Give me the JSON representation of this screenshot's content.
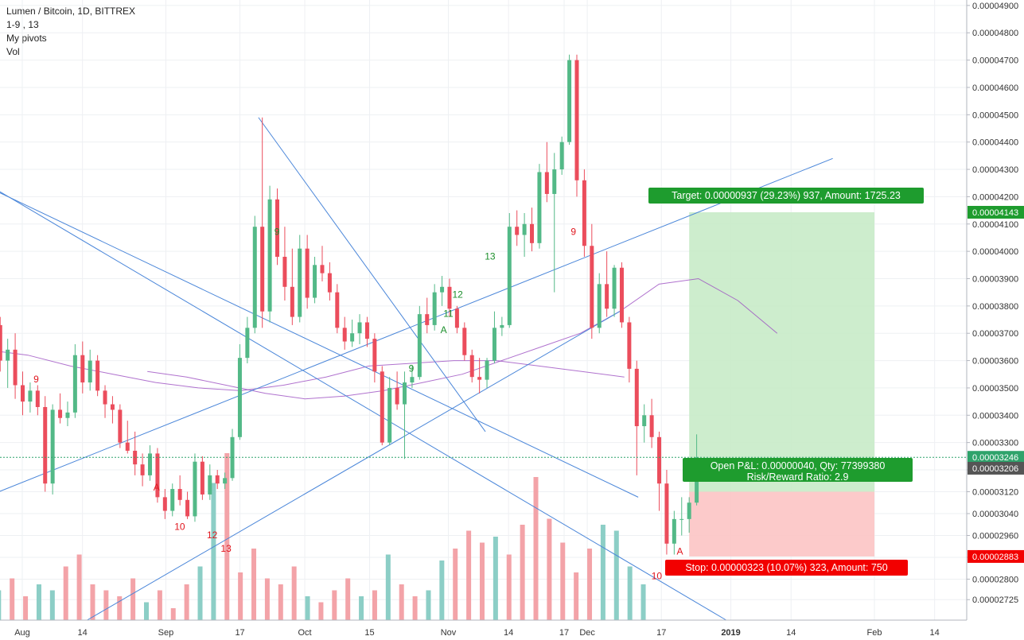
{
  "legend": {
    "title": "Lumen / Bitcoin, 1D, BITTREX",
    "line2": "1-9 , 13",
    "line3": "My pivots",
    "line4": "Vol"
  },
  "colors": {
    "up": "#53b987",
    "down": "#eb4d5c",
    "vol_up": "#8ccec6",
    "vol_down": "#f3a3a8",
    "trend": "#4a86d9",
    "ma_slow": "#9c4fc2",
    "target_zone": "#c8ebc8",
    "stop_zone": "#fcc4c4",
    "target_label": "#1e9c2e",
    "stop_label": "#f20000",
    "last_price": "#2fa36b",
    "marker_green": "#1c8f2c",
    "marker_red": "#e0151d",
    "marker_orange": "#e8a33a"
  },
  "chart_data": {
    "type": "candlestick",
    "symbol": "Lumen / Bitcoin, 1D, BITTREX",
    "ylim": [
      2.65e-05,
      4.92e-05
    ],
    "y_ticks": [
      "0.00004900",
      "0.00004800",
      "0.00004700",
      "0.00004600",
      "0.00004500",
      "0.00004400",
      "0.00004300",
      "0.00004200",
      "0.00004100",
      "0.00004000",
      "0.00003900",
      "0.00003800",
      "0.00003700",
      "0.00003600",
      "0.00003500",
      "0.00003400",
      "0.00003300",
      "0.00003200",
      "0.00003120",
      "0.00003040",
      "0.00002960",
      "0.00002880",
      "0.00002800",
      "0.00002725"
    ],
    "x_ticks": [
      {
        "label": "Aug",
        "date": "2018-08-01"
      },
      {
        "label": "14",
        "date": "2018-08-14"
      },
      {
        "label": "Sep",
        "date": "2018-09-01"
      },
      {
        "label": "17",
        "date": "2018-09-17"
      },
      {
        "label": "Oct",
        "date": "2018-10-01"
      },
      {
        "label": "15",
        "date": "2018-10-15"
      },
      {
        "label": "Nov",
        "date": "2018-11-01"
      },
      {
        "label": "14",
        "date": "2018-11-14"
      },
      {
        "label": "17",
        "date": "2018-11-26"
      },
      {
        "label": "Dec",
        "date": "2018-12-01"
      },
      {
        "label": "17",
        "date": "2018-12-17"
      },
      {
        "label": "2019",
        "date": "2019-01-01"
      },
      {
        "label": "14",
        "date": "2019-01-14"
      },
      {
        "label": "Feb",
        "date": "2019-02-01"
      },
      {
        "label": "14",
        "date": "2019-02-14"
      }
    ],
    "first_candle_date": "2018-07-24",
    "candles": [
      [
        3.88e-05,
        3.92e-05,
        3.74e-05,
        3.78e-05,
        3.84e-05,
        3.88e-05,
        3.7e-05,
        3.73e-05
      ],
      [
        3.73e-05,
        3.76e-05,
        3.56e-05,
        3.6e-05,
        3.6e-05,
        3.68e-05,
        3.5e-05,
        3.64e-05
      ],
      [
        3.64e-05,
        3.7e-05,
        3.46e-05,
        3.51e-05,
        3.51e-05,
        3.56e-05,
        3.4e-05,
        3.45e-05
      ],
      [
        3.45e-05,
        3.52e-05,
        3.41e-05,
        3.49e-05,
        3.49e-05,
        3.51e-05,
        3.4e-05,
        3.43e-05
      ],
      [
        3.43e-05,
        3.47e-05,
        3.12e-05,
        3.15e-05,
        3.15e-05,
        3.44e-05,
        3.11e-05,
        3.42e-05
      ],
      [
        3.42e-05,
        3.48e-05,
        3.37e-05,
        3.39e-05,
        3.39e-05,
        3.45e-05,
        3.36e-05,
        3.41e-05
      ],
      [
        3.41e-05,
        3.66e-05,
        3.39e-05,
        3.62e-05,
        3.62e-05,
        3.67e-05,
        3.48e-05,
        3.52e-05
      ],
      [
        3.52e-05,
        3.64e-05,
        3.49e-05,
        3.6e-05,
        3.6e-05,
        3.62e-05,
        3.47e-05,
        3.49e-05
      ],
      [
        3.49e-05,
        3.51e-05,
        3.39e-05,
        3.44e-05,
        3.44e-05,
        3.47e-05,
        3.37e-05,
        3.42e-05
      ],
      [
        3.42e-05,
        3.44e-05,
        3.28e-05,
        3.3e-05,
        3.3e-05,
        3.38e-05,
        3.26e-05,
        3.27e-05
      ],
      [
        3.27e-05,
        3.34e-05,
        3.18e-05,
        3.22e-05,
        3.22e-05,
        3.26e-05,
        3.14e-05,
        3.18e-05
      ],
      [
        3.18e-05,
        3.29e-05,
        3.16e-05,
        3.26e-05,
        3.26e-05,
        3.28e-05,
        3.08e-05,
        3.1e-05
      ],
      [
        3.1e-05,
        3.13e-05,
        3.02e-05,
        3.05e-05,
        3.05e-05,
        3.15e-05,
        3.03e-05,
        3.13e-05
      ],
      [
        3.13e-05,
        3.18e-05,
        3.07e-05,
        3.09e-05,
        3.09e-05,
        3.12e-05,
        3.02e-05,
        3.03e-05
      ],
      [
        3.03e-05,
        3.26e-05,
        3.01e-05,
        3.23e-05,
        3.23e-05,
        3.25e-05,
        3.09e-05,
        3.11e-05
      ],
      [
        3.11e-05,
        3.22e-05,
        3.09e-05,
        3.18e-05,
        3.18e-05,
        3.2e-05,
        3.13e-05,
        3.15e-05
      ],
      [
        3.15e-05,
        3.19e-05,
        3.13e-05,
        3.17e-05,
        3.17e-05,
        3.35e-05,
        3.16e-05,
        3.32e-05
      ],
      [
        3.32e-05,
        3.66e-05,
        3.31e-05,
        3.61e-05,
        3.61e-05,
        3.76e-05,
        3.59e-05,
        3.72e-05
      ],
      [
        3.72e-05,
        4.13e-05,
        3.7e-05,
        4.09e-05,
        4.09e-05,
        4.49e-05,
        3.72e-05,
        3.78e-05
      ],
      [
        3.78e-05,
        4.24e-05,
        3.74e-05,
        4.19e-05,
        4.19e-05,
        4.23e-05,
        3.95e-05,
        3.98e-05
      ],
      [
        3.98e-05,
        4.09e-05,
        3.82e-05,
        3.87e-05,
        3.87e-05,
        4.01e-05,
        3.73e-05,
        3.76e-05
      ],
      [
        3.76e-05,
        4.06e-05,
        3.74e-05,
        4.01e-05,
        4.01e-05,
        4.06e-05,
        3.79e-05,
        3.83e-05
      ],
      [
        3.83e-05,
        3.98e-05,
        3.81e-05,
        3.95e-05,
        3.95e-05,
        4.02e-05,
        3.89e-05,
        3.92e-05
      ],
      [
        3.92e-05,
        3.96e-05,
        3.82e-05,
        3.85e-05,
        3.85e-05,
        3.88e-05,
        3.7e-05,
        3.72e-05
      ],
      [
        3.72e-05,
        3.76e-05,
        3.64e-05,
        3.67e-05,
        3.67e-05,
        3.75e-05,
        3.65e-05,
        3.7e-05
      ],
      [
        3.7e-05,
        3.77e-05,
        3.66e-05,
        3.74e-05,
        3.74e-05,
        3.76e-05,
        3.65e-05,
        3.68e-05
      ],
      [
        3.68e-05,
        3.7e-05,
        3.52e-05,
        3.56e-05,
        3.56e-05,
        3.58e-05,
        3.29e-05,
        3.3e-05
      ],
      [
        3.3e-05,
        3.54e-05,
        3.29e-05,
        3.5e-05,
        3.5e-05,
        3.56e-05,
        3.42e-05,
        3.44e-05
      ],
      [
        3.44e-05,
        3.56e-05,
        3.24e-05,
        3.52e-05,
        3.52e-05,
        3.58e-05,
        3.5e-05,
        3.54e-05
      ],
      [
        3.54e-05,
        3.8e-05,
        3.53e-05,
        3.77e-05,
        3.77e-05,
        3.83e-05,
        3.7e-05,
        3.73e-05
      ],
      [
        3.73e-05,
        3.88e-05,
        3.71e-05,
        3.85e-05,
        3.85e-05,
        3.91e-05,
        3.8e-05,
        3.87e-05
      ],
      [
        3.87e-05,
        3.9e-05,
        3.76e-05,
        3.79e-05,
        3.79e-05,
        3.8e-05,
        3.7e-05,
        3.72e-05
      ],
      [
        3.72e-05,
        3.74e-05,
        3.6e-05,
        3.62e-05,
        3.62e-05,
        3.64e-05,
        3.52e-05,
        3.54e-05
      ],
      [
        3.54e-05,
        3.61e-05,
        3.48e-05,
        3.53e-05,
        3.53e-05,
        3.61e-05,
        3.5e-05,
        3.6e-05
      ],
      [
        3.6e-05,
        3.78e-05,
        3.59e-05,
        3.72e-05,
        3.72e-05,
        3.76e-05,
        3.69e-05,
        3.73e-05
      ],
      [
        3.73e-05,
        4.14e-05,
        3.72e-05,
        4.09e-05,
        4.09e-05,
        4.15e-05,
        4.02e-05,
        4.06e-05
      ],
      [
        4.06e-05,
        4.14e-05,
        3.98e-05,
        4.1e-05,
        4.1e-05,
        4.16e-05,
        4e-05,
        4.03e-05
      ],
      [
        4.03e-05,
        4.32e-05,
        4.01e-05,
        4.29e-05,
        4.29e-05,
        4.4e-05,
        4.18e-05,
        4.21e-05
      ],
      [
        4.21e-05,
        4.36e-05,
        3.85e-05,
        4.3e-05,
        4.3e-05,
        4.42e-05,
        4.28e-05,
        4.4e-05
      ],
      [
        4.4e-05,
        4.72e-05,
        4.39e-05,
        4.7e-05,
        4.7e-05,
        4.72e-05,
        4.2e-05,
        4.26e-05
      ],
      [
        4.26e-05,
        4.3e-05,
        3.98e-05,
        4.02e-05,
        4.02e-05,
        4.1e-05,
        3.68e-05,
        3.72e-05
      ],
      [
        3.72e-05,
        3.92e-05,
        3.7e-05,
        3.88e-05,
        3.88e-05,
        4e-05,
        3.76e-05,
        3.79e-05
      ],
      [
        3.79e-05,
        3.95e-05,
        3.76e-05,
        3.94e-05,
        3.94e-05,
        3.96e-05,
        3.72e-05,
        3.74e-05
      ],
      [
        3.74e-05,
        3.76e-05,
        3.52e-05,
        3.57e-05,
        3.57e-05,
        3.6e-05,
        3.18e-05,
        3.36e-05
      ],
      [
        3.36e-05,
        3.44e-05,
        3.3e-05,
        3.4e-05,
        3.4e-05,
        3.46e-05,
        3.28e-05,
        3.32e-05
      ],
      [
        3.32e-05,
        3.34e-05,
        3.05e-05,
        3.15e-05,
        3.15e-05,
        3.2e-05,
        2.89e-05,
        2.93e-05
      ],
      [
        2.93e-05,
        3.05e-05,
        2.89e-05,
        3.02e-05,
        3.02e-05,
        3.1e-05,
        2.96e-05,
        3.02e-05
      ],
      [
        3.02e-05,
        3.1e-05,
        2.97e-05,
        3.08e-05,
        3.08e-05,
        3.33e-05,
        3.07e-05,
        3.246e-05
      ]
    ],
    "volumes": [
      3,
      5,
      7,
      4,
      6,
      5,
      9,
      11,
      6,
      5,
      4,
      7,
      3,
      5,
      2,
      6,
      9,
      23,
      28,
      8,
      12,
      7,
      6,
      9,
      4,
      3,
      5,
      7,
      4,
      5,
      11,
      6,
      4,
      5,
      10,
      12,
      15,
      13,
      14,
      11,
      16,
      24,
      17,
      13,
      8,
      12,
      16,
      15,
      9,
      6
    ],
    "ma_mid": [
      3.56e-05,
      3.54e-05,
      3.51e-05,
      3.48e-05,
      3.46e-05,
      3.47e-05,
      3.49e-05,
      3.52e-05,
      3.55e-05,
      3.6e-05,
      3.65e-05,
      3.7e-05,
      3.78e-05,
      3.88e-05,
      3.9e-05,
      3.82e-05,
      3.7e-05
    ],
    "ma_slow": [
      3.64e-05,
      3.62e-05,
      3.58e-05,
      3.55e-05,
      3.52e-05,
      3.5e-05,
      3.49e-05,
      3.51e-05,
      3.54e-05,
      3.58e-05,
      3.59e-05,
      3.6e-05,
      3.6e-05,
      3.58e-05,
      3.56e-05,
      3.54e-05
    ],
    "last_price": "0.00003246",
    "current_price": "0.00003206",
    "target_price": "0.00004143",
    "stop_price": "0.00002883",
    "position": {
      "target_text": "Target: 0.00000937 (29.23%) 937, Amount: 1725.23",
      "stop_text": "Stop: 0.00000323 (10.07%) 323, Amount: 750",
      "pnl_text": "Open P&L: 0.00000040, Qty: 77399380",
      "rr_text": "Risk/Reward Ratio: 2.9"
    },
    "annotations": [
      {
        "text": "9",
        "color": "red",
        "date": "2018-08-04",
        "price": 3.52e-05
      },
      {
        "text": "A",
        "color": "red",
        "date": "2018-08-30",
        "price": 3.125e-05
      },
      {
        "text": "10",
        "color": "red",
        "date": "2018-09-04",
        "price": 2.98e-05
      },
      {
        "text": "12",
        "color": "red",
        "date": "2018-09-11",
        "price": 2.95e-05
      },
      {
        "text": "13",
        "color": "red",
        "date": "2018-09-14",
        "price": 2.9e-05
      },
      {
        "text": "9",
        "color": "green",
        "date": "2018-09-25",
        "price": 4.06e-05
      },
      {
        "text": "9",
        "color": "green",
        "date": "2018-10-24",
        "price": 3.56e-05
      },
      {
        "text": "A",
        "color": "green",
        "date": "2018-10-31",
        "price": 3.7e-05
      },
      {
        "text": "11",
        "color": "green",
        "date": "2018-11-01",
        "price": 3.76e-05
      },
      {
        "text": "12",
        "color": "green",
        "date": "2018-11-03",
        "price": 3.83e-05
      },
      {
        "text": "13",
        "color": "green",
        "date": "2018-11-10",
        "price": 3.97e-05
      },
      {
        "text": "9",
        "color": "red",
        "date": "2018-11-28",
        "price": 4.06e-05
      },
      {
        "text": "10",
        "color": "red",
        "date": "2018-12-16",
        "price": 2.8e-05
      },
      {
        "text": "A",
        "color": "red",
        "date": "2018-12-21",
        "price": 2.89e-05
      }
    ]
  }
}
